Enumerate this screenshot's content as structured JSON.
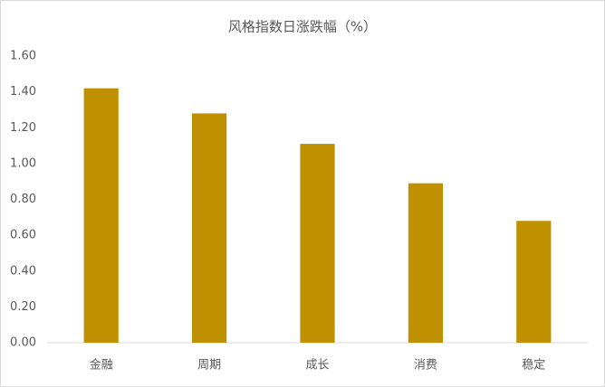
{
  "chart_data": {
    "type": "bar",
    "title": "风格指数日涨跌幅（%）",
    "categories": [
      "金融",
      "周期",
      "成长",
      "消费",
      "稳定"
    ],
    "values": [
      1.42,
      1.28,
      1.11,
      0.89,
      0.68
    ],
    "color": "#bf9000",
    "ylim": [
      0,
      1.6
    ],
    "yticks": [
      {
        "value": 0,
        "label": "0.00"
      },
      {
        "value": 0.2,
        "label": "0.20"
      },
      {
        "value": 0.4,
        "label": "0.40"
      },
      {
        "value": 0.6,
        "label": "0.60"
      },
      {
        "value": 0.8,
        "label": "0.80"
      },
      {
        "value": 1.0,
        "label": "1.00"
      },
      {
        "value": 1.2,
        "label": "1.20"
      },
      {
        "value": 1.4,
        "label": "1.40"
      },
      {
        "value": 1.6,
        "label": "1.60"
      }
    ],
    "grid": false
  }
}
